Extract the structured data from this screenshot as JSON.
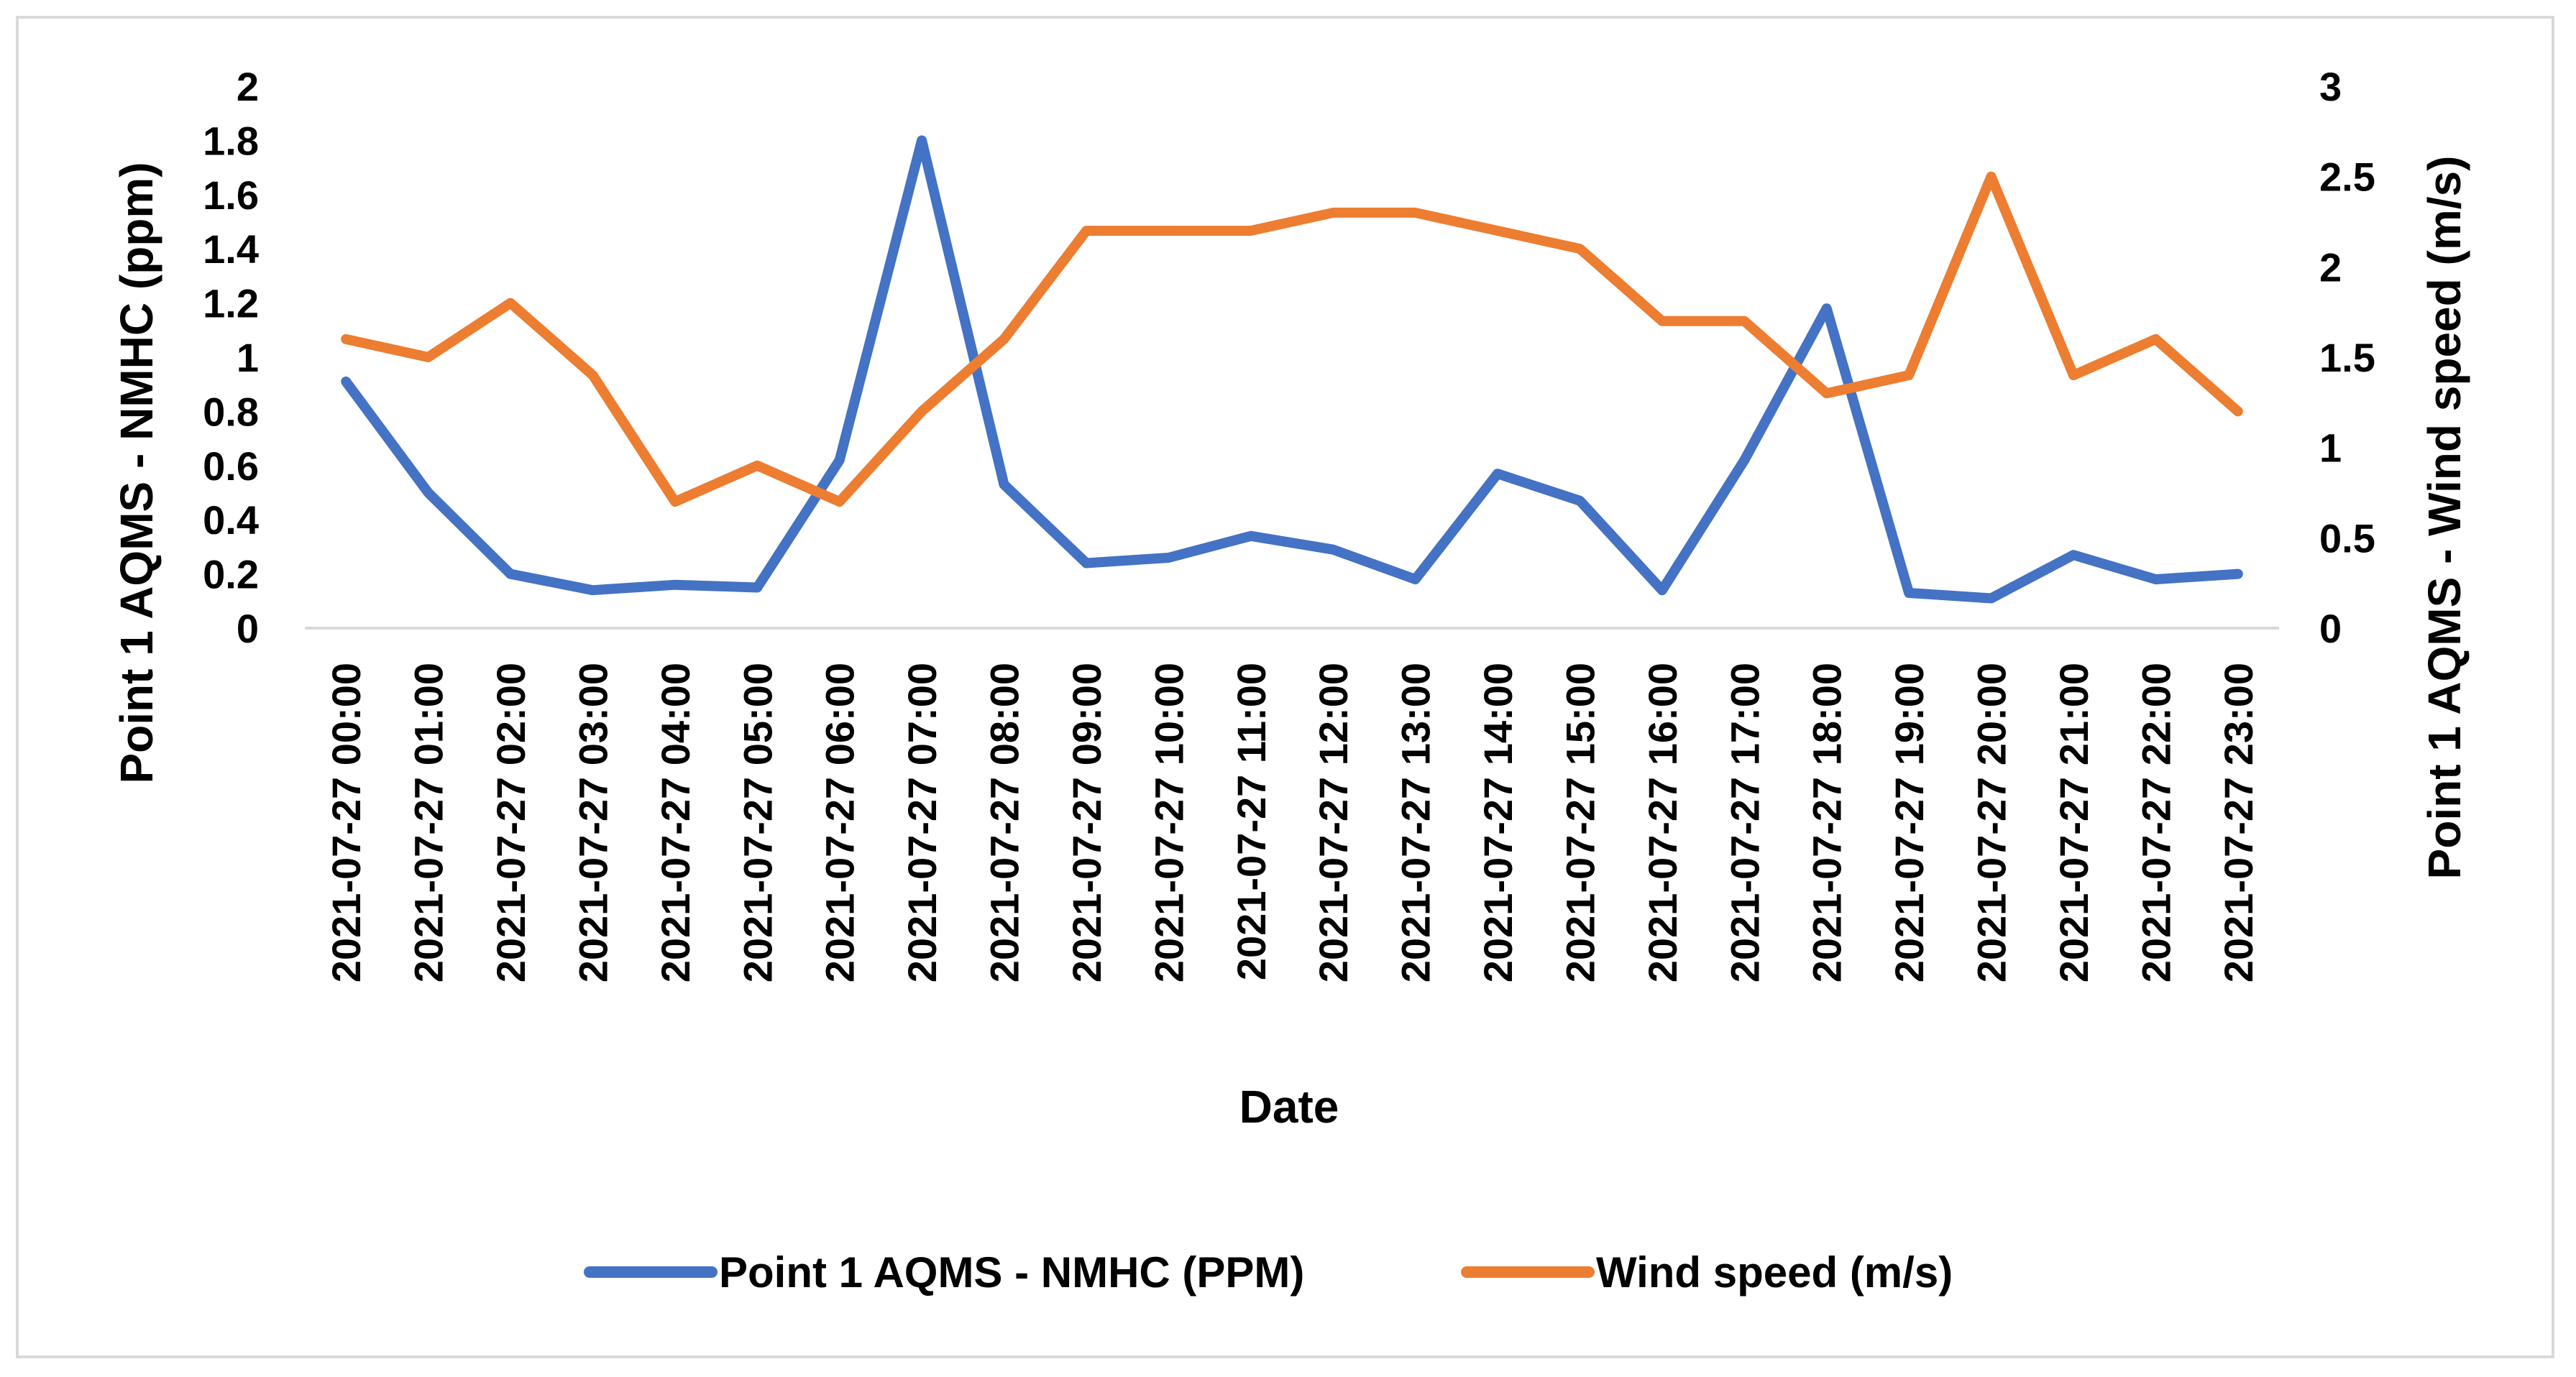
{
  "chart_data": {
    "type": "line",
    "title": "",
    "xlabel": "Date",
    "ylabel_left": "Point 1 AQMS - NMHC (ppm)",
    "ylabel_right": "Point 1 AQMS - Wind speed (m/s)",
    "y_left_lim": [
      0,
      2
    ],
    "y_left_ticks": [
      "0",
      "0.2",
      "0.4",
      "0.6",
      "0.8",
      "1",
      "1.2",
      "1.4",
      "1.6",
      "1.8",
      "2"
    ],
    "y_right_lim": [
      0,
      3
    ],
    "y_right_ticks": [
      "0",
      "0.5",
      "1",
      "1.5",
      "2",
      "2.5",
      "3"
    ],
    "grid": false,
    "legend_position": "bottom",
    "categories": [
      "2021-07-27 00:00",
      "2021-07-27 01:00",
      "2021-07-27 02:00",
      "2021-07-27 03:00",
      "2021-07-27 04:00",
      "2021-07-27 05:00",
      "2021-07-27 06:00",
      "2021-07-27 07:00",
      "2021-07-27 08:00",
      "2021-07-27 09:00",
      "2021-07-27 10:00",
      "2021-07-27 11:00",
      "2021-07-27 12:00",
      "2021-07-27 13:00",
      "2021-07-27 14:00",
      "2021-07-27 15:00",
      "2021-07-27 16:00",
      "2021-07-27 17:00",
      "2021-07-27 18:00",
      "2021-07-27 19:00",
      "2021-07-27 20:00",
      "2021-07-27 21:00",
      "2021-07-27 22:00",
      "2021-07-27 23:00"
    ],
    "series": [
      {
        "name": "Point 1 AQMS - NMHC (PPM)",
        "axis": "left",
        "color": "#4472c4",
        "values": [
          0.91,
          0.5,
          0.2,
          0.14,
          0.16,
          0.15,
          0.62,
          1.8,
          0.53,
          0.24,
          0.26,
          0.34,
          0.29,
          0.18,
          0.57,
          0.47,
          0.14,
          0.62,
          1.18,
          0.13,
          0.11,
          0.27,
          0.18,
          0.2
        ]
      },
      {
        "name": "Wind speed (m/s)",
        "axis": "right",
        "color": "#ed7d31",
        "values": [
          1.6,
          1.5,
          1.8,
          1.4,
          0.7,
          0.9,
          0.7,
          1.2,
          1.6,
          2.2,
          2.2,
          2.2,
          2.3,
          2.3,
          2.2,
          2.1,
          1.7,
          1.7,
          1.3,
          1.4,
          2.5,
          1.4,
          1.6,
          1.2
        ]
      }
    ]
  }
}
